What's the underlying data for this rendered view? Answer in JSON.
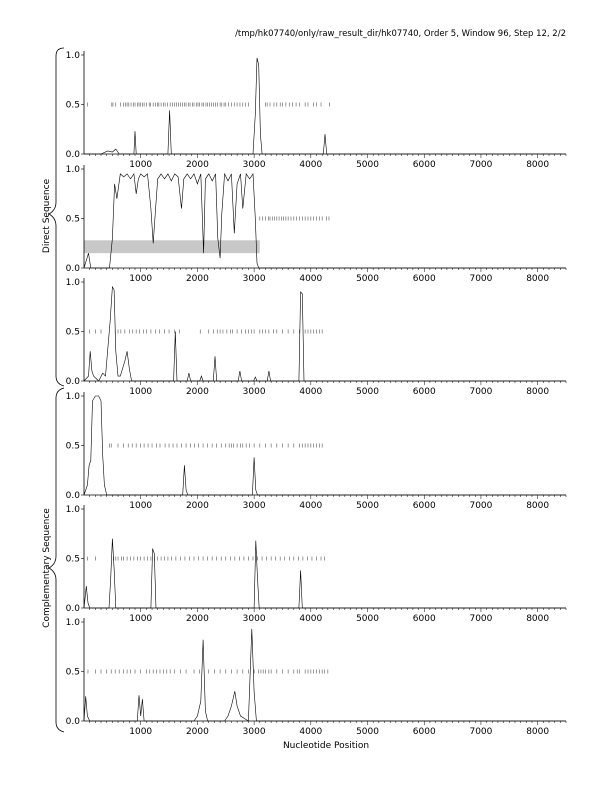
{
  "chart_data": {
    "type": "line",
    "title": "/tmp/hk07740/only/raw_result_dir/hk07740, Order 5, Window 96, Step 12, 2/2",
    "xlabel": "Nucleotide Position",
    "group_labels": [
      "Direct Sequence",
      "Complementary Sequence"
    ],
    "xlim": [
      0,
      8500
    ],
    "ylim": [
      0,
      1
    ],
    "x_ticks": [
      1000,
      2000,
      3000,
      4000,
      5000,
      6000,
      7000,
      8000
    ],
    "y_ticks": [
      0.0,
      0.5,
      1.0
    ],
    "y_tick_labels": [
      "0.0",
      "0.5",
      "1.0"
    ],
    "grid": false,
    "panels": [
      {
        "group": "Direct Sequence",
        "series": [
          [
            0,
            0
          ],
          [
            300,
            0
          ],
          [
            420,
            0.03
          ],
          [
            500,
            0.02
          ],
          [
            560,
            0.05
          ],
          [
            620,
            0
          ],
          [
            880,
            0
          ],
          [
            900,
            0.23
          ],
          [
            920,
            0
          ],
          [
            1480,
            0
          ],
          [
            1510,
            0.44
          ],
          [
            1540,
            0
          ],
          [
            2980,
            0
          ],
          [
            3020,
            0.4
          ],
          [
            3050,
            0.97
          ],
          [
            3080,
            0.9
          ],
          [
            3110,
            0.2
          ],
          [
            3140,
            0
          ],
          [
            4220,
            0
          ],
          [
            4250,
            0.2
          ],
          [
            4280,
            0
          ],
          [
            8500,
            0
          ]
        ],
        "marks": [
          60,
          490,
          510,
          560,
          640,
          700,
          730,
          760,
          790,
          830,
          870,
          900,
          940,
          970,
          1000,
          1030,
          1060,
          1100,
          1150,
          1170,
          1220,
          1260,
          1300,
          1320,
          1360,
          1400,
          1430,
          1470,
          1520,
          1560,
          1600,
          1630,
          1670,
          1700,
          1740,
          1770,
          1800,
          1840,
          1870,
          1910,
          1940,
          1980,
          2010,
          2040,
          2080,
          2110,
          2150,
          2180,
          2210,
          2250,
          2280,
          2320,
          2350,
          2400,
          2430,
          2470,
          2500,
          2550,
          2600,
          2650,
          2700,
          2750,
          2800,
          2850,
          2900,
          3200,
          3230,
          3280,
          3350,
          3400,
          3460,
          3500,
          3560,
          3620,
          3680,
          3740,
          3800,
          3900,
          3950,
          4050,
          4100,
          4180,
          4330
        ]
      },
      {
        "group": "Direct Sequence",
        "series": [
          [
            0,
            0
          ],
          [
            80,
            0.15
          ],
          [
            120,
            0
          ],
          [
            450,
            0
          ],
          [
            500,
            0.3
          ],
          [
            540,
            0.85
          ],
          [
            580,
            0.7
          ],
          [
            640,
            0.95
          ],
          [
            700,
            0.92
          ],
          [
            760,
            0.95
          ],
          [
            820,
            0.9
          ],
          [
            880,
            0.95
          ],
          [
            920,
            0.75
          ],
          [
            960,
            0.9
          ],
          [
            1000,
            0.95
          ],
          [
            1060,
            0.92
          ],
          [
            1120,
            0.95
          ],
          [
            1180,
            0.6
          ],
          [
            1220,
            0.25
          ],
          [
            1250,
            0.5
          ],
          [
            1300,
            0.9
          ],
          [
            1360,
            0.95
          ],
          [
            1420,
            0.9
          ],
          [
            1480,
            0.95
          ],
          [
            1540,
            0.88
          ],
          [
            1600,
            0.95
          ],
          [
            1660,
            0.92
          ],
          [
            1720,
            0.6
          ],
          [
            1760,
            0.9
          ],
          [
            1820,
            0.95
          ],
          [
            1880,
            0.9
          ],
          [
            1940,
            0.95
          ],
          [
            2000,
            0.85
          ],
          [
            2060,
            0.95
          ],
          [
            2110,
            0.15
          ],
          [
            2140,
            0.9
          ],
          [
            2200,
            0.95
          ],
          [
            2260,
            0.88
          ],
          [
            2320,
            0.95
          ],
          [
            2360,
            0.3
          ],
          [
            2400,
            0.1
          ],
          [
            2430,
            0.55
          ],
          [
            2480,
            0.95
          ],
          [
            2540,
            0.88
          ],
          [
            2600,
            0.95
          ],
          [
            2650,
            0.35
          ],
          [
            2700,
            0.85
          ],
          [
            2760,
            0.95
          ],
          [
            2800,
            0.6
          ],
          [
            2860,
            0.95
          ],
          [
            2920,
            0.9
          ],
          [
            2980,
            0.95
          ],
          [
            3020,
            0.5
          ],
          [
            3050,
            0.05
          ],
          [
            3080,
            0
          ],
          [
            8500,
            0
          ]
        ],
        "marks": [
          3100,
          3150,
          3200,
          3250,
          3280,
          3320,
          3360,
          3400,
          3440,
          3480,
          3520,
          3560,
          3600,
          3650,
          3700,
          3750,
          3800,
          3850,
          3900,
          3950,
          4000,
          4050,
          4100,
          4150,
          4200,
          4280,
          4320
        ],
        "band": [
          0,
          3100,
          0.15,
          0.28
        ]
      },
      {
        "group": "Direct Sequence",
        "series": [
          [
            0,
            0
          ],
          [
            80,
            0.05
          ],
          [
            110,
            0.3
          ],
          [
            140,
            0.1
          ],
          [
            170,
            0.05
          ],
          [
            260,
            0
          ],
          [
            330,
            0.08
          ],
          [
            380,
            0.05
          ],
          [
            460,
            0.6
          ],
          [
            500,
            0.95
          ],
          [
            530,
            0.92
          ],
          [
            560,
            0.3
          ],
          [
            600,
            0.05
          ],
          [
            640,
            0.05
          ],
          [
            720,
            0.2
          ],
          [
            760,
            0.3
          ],
          [
            800,
            0.12
          ],
          [
            840,
            0
          ],
          [
            1580,
            0
          ],
          [
            1610,
            0.5
          ],
          [
            1640,
            0
          ],
          [
            1820,
            0
          ],
          [
            1850,
            0.08
          ],
          [
            1880,
            0
          ],
          [
            2040,
            0
          ],
          [
            2070,
            0.05
          ],
          [
            2100,
            0
          ],
          [
            2280,
            0
          ],
          [
            2310,
            0.25
          ],
          [
            2340,
            0
          ],
          [
            2720,
            0
          ],
          [
            2750,
            0.1
          ],
          [
            2780,
            0
          ],
          [
            2990,
            0
          ],
          [
            3020,
            0.04
          ],
          [
            3050,
            0
          ],
          [
            3230,
            0
          ],
          [
            3260,
            0.1
          ],
          [
            3290,
            0
          ],
          [
            3790,
            0
          ],
          [
            3820,
            0.9
          ],
          [
            3850,
            0.88
          ],
          [
            3880,
            0
          ],
          [
            8500,
            0
          ]
        ],
        "marks": [
          100,
          200,
          300,
          550,
          600,
          650,
          720,
          800,
          860,
          920,
          980,
          1050,
          1100,
          1180,
          1260,
          1330,
          1420,
          1500,
          1600,
          1680,
          2050,
          2200,
          2280,
          2350,
          2400,
          2450,
          2520,
          2580,
          2620,
          2700,
          2780,
          2850,
          2900,
          2950,
          3000,
          3100,
          3150,
          3200,
          3260,
          3340,
          3400,
          3500,
          3600,
          3700,
          3800,
          3900,
          3950,
          4000,
          4050,
          4100,
          4150,
          4200
        ]
      },
      {
        "group": "Complementary Sequence",
        "series": [
          [
            0,
            0
          ],
          [
            60,
            0.1
          ],
          [
            90,
            0.3
          ],
          [
            120,
            0.35
          ],
          [
            150,
            0.95
          ],
          [
            200,
            1.0
          ],
          [
            260,
            1.0
          ],
          [
            300,
            0.95
          ],
          [
            330,
            0.4
          ],
          [
            360,
            0.1
          ],
          [
            400,
            0
          ],
          [
            1740,
            0
          ],
          [
            1770,
            0.3
          ],
          [
            1800,
            0.05
          ],
          [
            1830,
            0
          ],
          [
            2970,
            0
          ],
          [
            3000,
            0.38
          ],
          [
            3030,
            0.05
          ],
          [
            3060,
            0
          ],
          [
            8500,
            0
          ]
        ],
        "marks": [
          450,
          480,
          600,
          700,
          780,
          850,
          920,
          1000,
          1060,
          1130,
          1200,
          1280,
          1340,
          1430,
          1500,
          1570,
          1640,
          1720,
          1800,
          1880,
          1950,
          2020,
          2100,
          2180,
          2260,
          2340,
          2420,
          2500,
          2560,
          2600,
          2640,
          2700,
          2760,
          2800,
          2860,
          2920,
          3000,
          3100,
          3200,
          3300,
          3400,
          3500,
          3600,
          3700,
          3800,
          3850,
          3900,
          3950,
          4000,
          4050,
          4100,
          4150,
          4200
        ]
      },
      {
        "group": "Complementary Sequence",
        "series": [
          [
            0,
            0
          ],
          [
            40,
            0.22
          ],
          [
            70,
            0.05
          ],
          [
            100,
            0
          ],
          [
            440,
            0
          ],
          [
            470,
            0.3
          ],
          [
            500,
            0.7
          ],
          [
            530,
            0.4
          ],
          [
            560,
            0
          ],
          [
            1180,
            0
          ],
          [
            1210,
            0.6
          ],
          [
            1240,
            0.55
          ],
          [
            1270,
            0
          ],
          [
            3000,
            0
          ],
          [
            3030,
            0.68
          ],
          [
            3060,
            0.3
          ],
          [
            3090,
            0
          ],
          [
            3790,
            0
          ],
          [
            3820,
            0.38
          ],
          [
            3850,
            0
          ],
          [
            8500,
            0
          ]
        ],
        "marks": [
          60,
          200,
          520,
          560,
          600,
          660,
          700,
          760,
          820,
          880,
          940,
          1000,
          1060,
          1120,
          1180,
          1240,
          1300,
          1360,
          1420,
          1480,
          1540,
          1620,
          1700,
          1780,
          1860,
          1940,
          2020,
          2100,
          2180,
          2260,
          2340,
          2420,
          2500,
          2580,
          2660,
          2740,
          2820,
          2900,
          2980,
          3060,
          3140,
          3220,
          3300,
          3380,
          3460,
          3540,
          3620,
          3700,
          3780,
          3860,
          3940,
          4020,
          4100,
          4180,
          4240
        ]
      },
      {
        "group": "Complementary Sequence",
        "series": [
          [
            0,
            0
          ],
          [
            30,
            0.25
          ],
          [
            60,
            0.05
          ],
          [
            100,
            0
          ],
          [
            940,
            0
          ],
          [
            970,
            0.26
          ],
          [
            1000,
            0.05
          ],
          [
            1030,
            0.22
          ],
          [
            1060,
            0
          ],
          [
            1940,
            0
          ],
          [
            2000,
            0.05
          ],
          [
            2060,
            0.2
          ],
          [
            2100,
            0.82
          ],
          [
            2140,
            0.1
          ],
          [
            2180,
            0
          ],
          [
            2480,
            0
          ],
          [
            2540,
            0.05
          ],
          [
            2600,
            0.15
          ],
          [
            2660,
            0.3
          ],
          [
            2700,
            0.15
          ],
          [
            2760,
            0.05
          ],
          [
            2900,
            0
          ],
          [
            2960,
            0.93
          ],
          [
            3000,
            0.3
          ],
          [
            3040,
            0
          ],
          [
            8500,
            0
          ]
        ],
        "marks": [
          70,
          200,
          300,
          400,
          480,
          550,
          620,
          700,
          760,
          820,
          900,
          1000,
          1100,
          1160,
          1220,
          1280,
          1340,
          1400,
          1460,
          1520,
          1600,
          1700,
          1800,
          1940,
          2040,
          2200,
          2300,
          2400,
          2500,
          2600,
          2700,
          2800,
          2900,
          3000,
          3080,
          3120,
          3160,
          3200,
          3260,
          3300,
          3400,
          3500,
          3600,
          3700,
          3760,
          3800,
          3900,
          3950,
          4000,
          4050,
          4100,
          4150,
          4200,
          4240,
          4300
        ]
      }
    ]
  }
}
